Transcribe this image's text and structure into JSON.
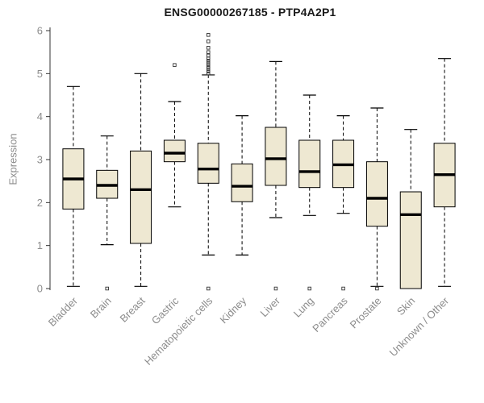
{
  "chart_data": {
    "type": "boxplot",
    "title": "ENSG00000267185 - PTP4A2P1",
    "ylabel": "Expression",
    "ylim": [
      0,
      6
    ],
    "yticks": [
      0,
      1,
      2,
      3,
      4,
      5,
      6
    ],
    "grid": "off",
    "legend": "none",
    "categories": [
      "Bladder",
      "Brain",
      "Breast",
      "Gastric",
      "Hematopoietic cells",
      "Kidney",
      "Liver",
      "Lung",
      "Pancreas",
      "Prostate",
      "Skin",
      "Unknown / Other"
    ],
    "boxes": [
      {
        "low": 0.05,
        "q1": 1.85,
        "median": 2.55,
        "q3": 3.25,
        "high": 4.7,
        "outliers": []
      },
      {
        "low": 1.02,
        "q1": 2.1,
        "median": 2.4,
        "q3": 2.75,
        "high": 3.55,
        "outliers": [
          0
        ]
      },
      {
        "low": 0.05,
        "q1": 1.05,
        "median": 2.3,
        "q3": 3.2,
        "high": 5.0,
        "outliers": []
      },
      {
        "low": 1.9,
        "q1": 2.95,
        "median": 3.15,
        "q3": 3.45,
        "high": 4.35,
        "outliers": [
          5.2
        ]
      },
      {
        "low": 0.78,
        "q1": 2.45,
        "median": 2.78,
        "q3": 3.38,
        "high": 4.97,
        "outliers": [
          0,
          5.0,
          5.05,
          5.1,
          5.15,
          5.2,
          5.25,
          5.3,
          5.35,
          5.42,
          5.5,
          5.6,
          5.75,
          5.9
        ]
      },
      {
        "low": 0.78,
        "q1": 2.02,
        "median": 2.38,
        "q3": 2.9,
        "high": 4.02,
        "outliers": []
      },
      {
        "low": 1.65,
        "q1": 2.4,
        "median": 3.02,
        "q3": 3.75,
        "high": 5.28,
        "outliers": [
          0
        ]
      },
      {
        "low": 1.7,
        "q1": 2.35,
        "median": 2.72,
        "q3": 3.45,
        "high": 4.5,
        "outliers": [
          0
        ]
      },
      {
        "low": 1.75,
        "q1": 2.35,
        "median": 2.88,
        "q3": 3.45,
        "high": 4.02,
        "outliers": [
          0
        ]
      },
      {
        "low": 0.05,
        "q1": 1.45,
        "median": 2.1,
        "q3": 2.95,
        "high": 4.2,
        "outliers": [
          0
        ]
      },
      {
        "low": 0.0,
        "q1": 0.0,
        "median": 1.72,
        "q3": 2.25,
        "high": 3.7,
        "outliers": []
      },
      {
        "low": 0.05,
        "q1": 1.9,
        "median": 2.65,
        "q3": 3.38,
        "high": 5.35,
        "outliers": []
      }
    ],
    "colors": {
      "box_fill": "#EEE8D2",
      "box_stroke": "#000000",
      "median": "#000000",
      "whisker": "#000000",
      "outlier_stroke": "#333333",
      "axis_line": "#333333",
      "axis_text": "#8c8c8c",
      "title_text": "#1a1a1a"
    }
  }
}
